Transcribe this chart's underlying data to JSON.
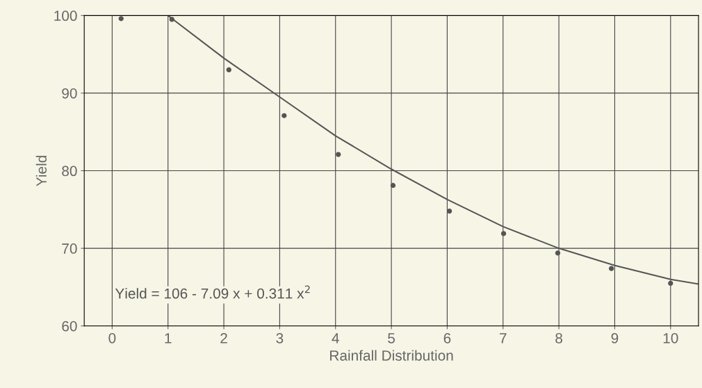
{
  "chart_data": {
    "type": "scatter",
    "xlabel": "Rainfall Distribution",
    "ylabel": "Yield",
    "xlim": [
      -0.5,
      10.5
    ],
    "xticks": [
      0,
      1,
      2,
      3,
      4,
      5,
      6,
      7,
      8,
      9,
      10
    ],
    "ylim": [
      60,
      100
    ],
    "yticks": [
      60,
      70,
      80,
      90,
      100
    ],
    "grid": true,
    "marker": "circle",
    "series": [
      {
        "color": "#555555",
        "x": [
          0.16,
          1.07,
          2.09,
          3.08,
          4.05,
          5.03,
          6.04,
          7.01,
          7.98,
          8.94,
          10.0
        ],
        "values": [
          99.6,
          99.5,
          93.0,
          87.1,
          82.1,
          78.1,
          74.8,
          71.9,
          69.4,
          67.4,
          65.5
        ]
      },
      {
        "type": "line",
        "color": "#555555",
        "marker": "none",
        "line_style": "solid",
        "x": [
          1.0,
          2.0,
          3.0,
          4.0,
          5.0,
          6.0,
          7.0,
          8.0,
          9.0,
          10.0,
          10.5
        ],
        "values": [
          100,
          94.5,
          89.5,
          84.5,
          80.2,
          76.3,
          72.8,
          70.0,
          67.8,
          66.0,
          65.4
        ]
      }
    ],
    "annotations": [
      "Yield = 106 - 7.09 x + 0.311 x$^{2}$"
    ]
  }
}
